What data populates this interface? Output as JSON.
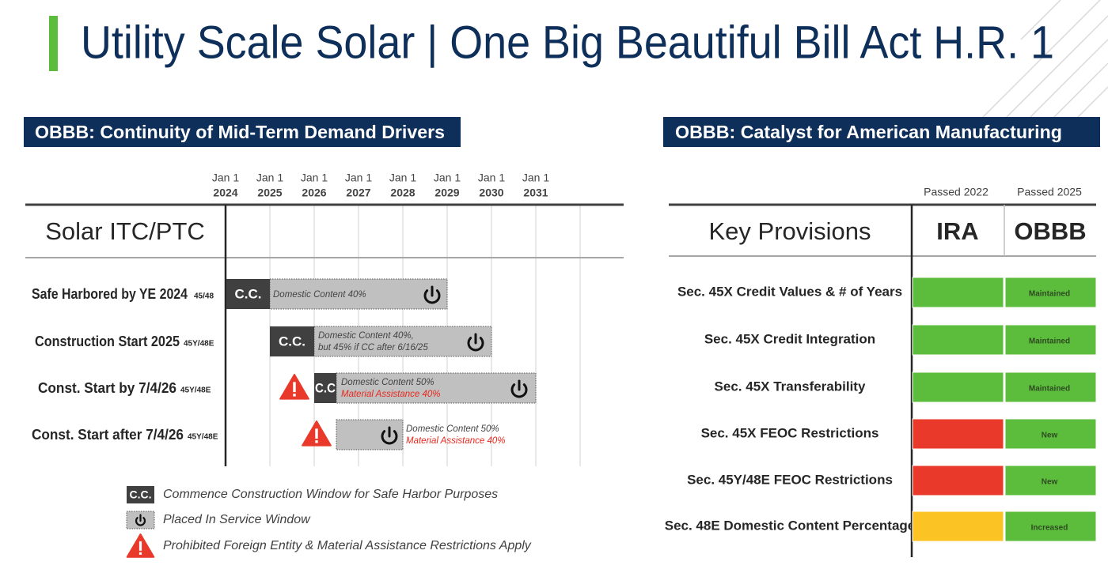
{
  "title": "Utility Scale Solar | One Big Beautiful Bill Act H.R. 1",
  "left_panel": {
    "heading": "OBBB: Continuity of Mid-Term Demand Drivers",
    "timeline": [
      {
        "month": "Jan 1",
        "year": "2024"
      },
      {
        "month": "Jan 1",
        "year": "2025"
      },
      {
        "month": "Jan 1",
        "year": "2026"
      },
      {
        "month": "Jan 1",
        "year": "2027"
      },
      {
        "month": "Jan 1",
        "year": "2028"
      },
      {
        "month": "Jan 1",
        "year": "2029"
      },
      {
        "month": "Jan 1",
        "year": "2030"
      },
      {
        "month": "Jan 1",
        "year": "2031"
      }
    ],
    "column_title": "Solar ITC/PTC",
    "rows": [
      {
        "label": "Safe Harbored by YE 2024",
        "code": "45/48",
        "cc": "C.C.",
        "window_text": [
          {
            "text": "Domestic Content 40%",
            "color": "#444444"
          }
        ]
      },
      {
        "label": "Construction Start 2025",
        "code": "45Y/48E",
        "cc": "C.C.",
        "window_text": [
          {
            "text": "Domestic Content 40%,",
            "color": "#444444"
          },
          {
            "text": "but 45% if CC after 6/16/25",
            "color": "#444444"
          }
        ]
      },
      {
        "label": "Const. Start by 7/4/26",
        "code": "45Y/48E",
        "cc": "C.C",
        "window_text": [
          {
            "text": "Domestic Content 50%",
            "color": "#444444"
          },
          {
            "text": "Material Assistance 40%",
            "color": "#e8281e"
          }
        ]
      },
      {
        "label": "Const. Start after 7/4/26",
        "code": "45Y/48E",
        "window_text": [
          {
            "text": "Domestic Content 50%",
            "color": "#444444"
          },
          {
            "text": "Material Assistance 40%",
            "color": "#e8281e"
          }
        ]
      }
    ],
    "legend": [
      {
        "symbol": "C.C.",
        "text": "Commence Construction Window for Safe Harbor Purposes"
      },
      {
        "text": "Placed In Service Window"
      },
      {
        "text": "Prohibited Foreign Entity & Material Assistance Restrictions Apply"
      }
    ]
  },
  "right_panel": {
    "heading": "OBBB: Catalyst for American Manufacturing",
    "column_notes": [
      "Passed 2022",
      "Passed 2025"
    ],
    "headers": [
      "Key Provisions",
      "IRA",
      "OBBB"
    ],
    "rows": [
      {
        "label": "Sec. 45X Credit Values & # of Years",
        "ira_color": "#5cbd3c",
        "obbb": "Maintained",
        "obbb_color": "#5cbd3c"
      },
      {
        "label": "Sec. 45X Credit Integration",
        "ira_color": "#5cbd3c",
        "obbb": "Maintained",
        "obbb_color": "#5cbd3c"
      },
      {
        "label": "Sec. 45X Transferability",
        "ira_color": "#5cbd3c",
        "obbb": "Maintained",
        "obbb_color": "#5cbd3c"
      },
      {
        "label": "Sec. 45X FEOC Restrictions",
        "ira_color": "#e8392a",
        "obbb": "New",
        "obbb_color": "#5cbd3c"
      },
      {
        "label": "Sec. 45Y/48E FEOC Restrictions",
        "ira_color": "#e8392a",
        "obbb": "New",
        "obbb_color": "#5cbd3c"
      },
      {
        "label": "Sec. 48E Domestic Content Percentage",
        "ira_color": "#fcc325",
        "obbb": "Increased",
        "obbb_color": "#5cbd3c"
      }
    ]
  }
}
